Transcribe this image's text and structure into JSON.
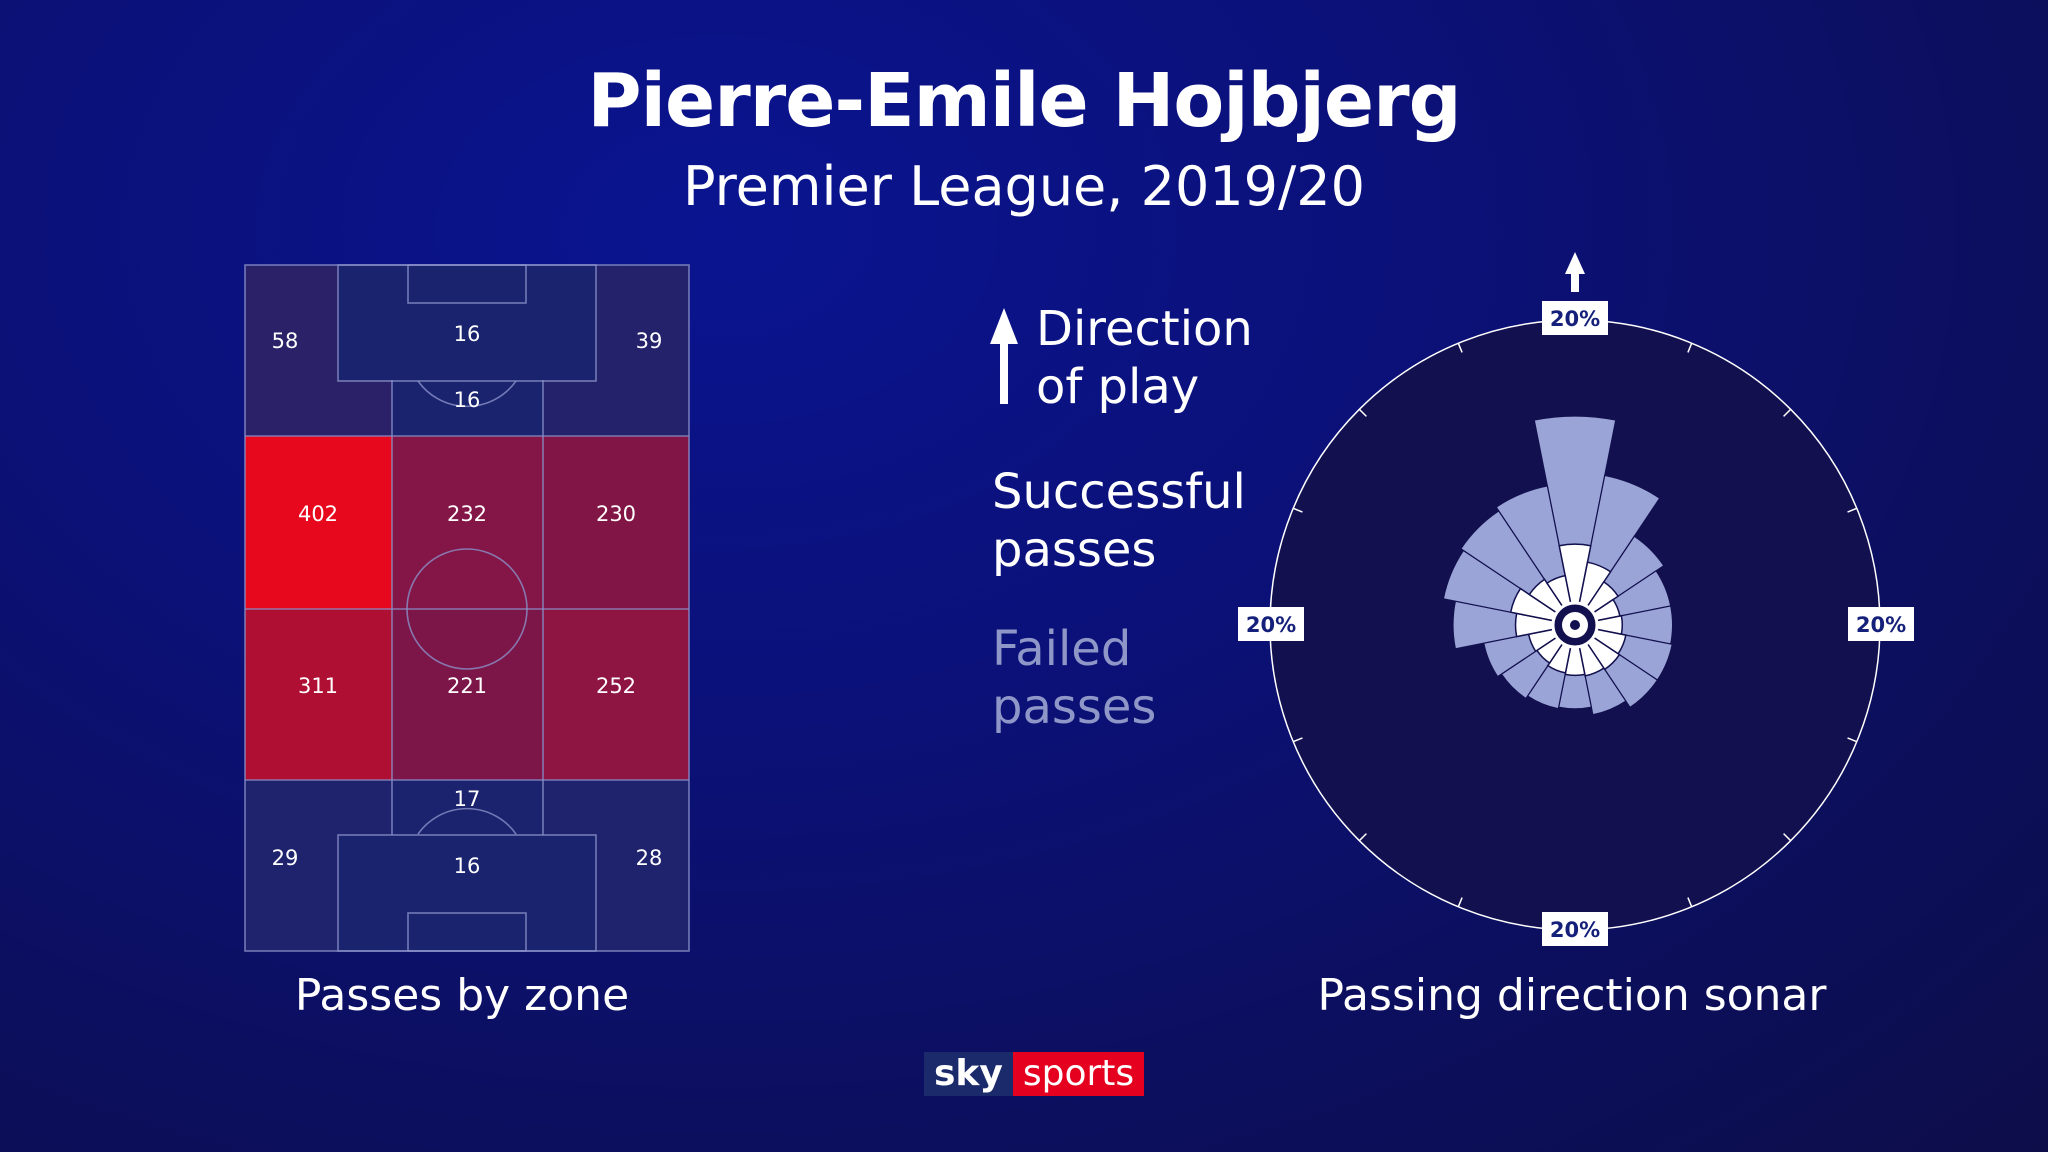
{
  "header": {
    "title": "Pierre-Emile Hojbjerg",
    "subtitle": "Premier League, 2019/20"
  },
  "legend": {
    "direction_line1": "Direction",
    "direction_line2": "of play",
    "successful_line1": "Successful",
    "successful_line2": "passes",
    "failed_line1": "Failed",
    "failed_line2": "passes"
  },
  "captions": {
    "zones": "Passes by zone",
    "sonar": "Passing direction sonar"
  },
  "logo": {
    "sky": "sky",
    "sports": "sports"
  },
  "colors": {
    "successful": "#ffffff",
    "failed": "#9aa4d6",
    "heat_high": "#e8081e",
    "sonar_bg": "#12104e"
  },
  "chart_data": [
    {
      "type": "heatmap",
      "title": "",
      "caption": "Passes by zone",
      "zones": [
        {
          "id": "top-left",
          "value": 58
        },
        {
          "id": "top-box",
          "value": 16
        },
        {
          "id": "top-right",
          "value": 39
        },
        {
          "id": "top-arc",
          "value": 16
        },
        {
          "id": "upper-mid-left",
          "value": 402
        },
        {
          "id": "upper-mid-center",
          "value": 232
        },
        {
          "id": "upper-mid-right",
          "value": 230
        },
        {
          "id": "lower-mid-left",
          "value": 311
        },
        {
          "id": "lower-mid-center",
          "value": 221
        },
        {
          "id": "lower-mid-right",
          "value": 252
        },
        {
          "id": "bottom-arc",
          "value": 17
        },
        {
          "id": "bottom-left",
          "value": 29
        },
        {
          "id": "bottom-box",
          "value": 16
        },
        {
          "id": "bottom-right",
          "value": 28
        }
      ]
    },
    {
      "type": "radial-bar",
      "title": "",
      "caption": "Passing direction sonar",
      "scale_label": "20%",
      "scale_max_percent": 20,
      "direction_0_deg": "up",
      "sectors_deg_center": [
        0,
        22.5,
        45,
        67.5,
        90,
        112.5,
        135,
        157.5,
        180,
        202.5,
        225,
        247.5,
        270,
        292.5,
        315,
        337.5
      ],
      "series": [
        {
          "name": "Successful passes",
          "values": [
            5.3,
            4.2,
            3.4,
            3.0,
            3.1,
            3.4,
            3.5,
            3.4,
            3.3,
            3.2,
            3.0,
            3.1,
            3.9,
            4.3,
            3.6,
            3.3
          ]
        },
        {
          "name": "Failed passes",
          "values": [
            8.4,
            5.8,
            3.6,
            3.4,
            3.3,
            3.1,
            3.0,
            2.6,
            2.2,
            2.4,
            2.8,
            3.0,
            4.1,
            4.5,
            5.4,
            6.0
          ]
        }
      ]
    }
  ]
}
